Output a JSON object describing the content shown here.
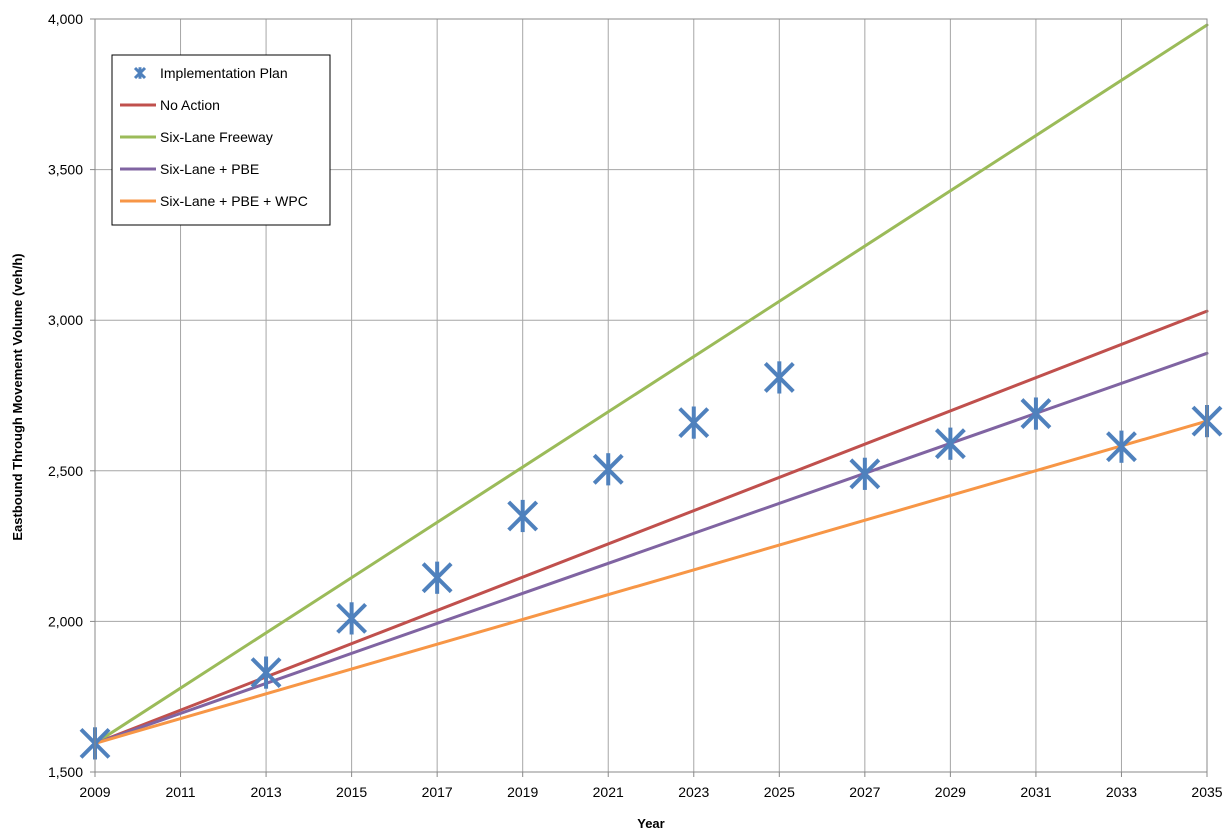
{
  "chart_data": {
    "type": "line",
    "title": "",
    "xlabel": "Year",
    "ylabel": "Eastbound Through Movement  Volume (veh/h)",
    "xlim": [
      2009,
      2035
    ],
    "ylim": [
      1500,
      4000
    ],
    "x_ticks": [
      "2009",
      "2011",
      "2013",
      "2015",
      "2017",
      "2019",
      "2021",
      "2023",
      "2025",
      "2027",
      "2029",
      "2031",
      "2033",
      "2035"
    ],
    "y_ticks": [
      "1,500",
      "2,000",
      "2,500",
      "3,000",
      "3,500",
      "4,000"
    ],
    "grid": true,
    "legend_position": "top-left",
    "series": [
      {
        "name": "Implementation Plan",
        "style": "markers",
        "marker": "asterisk",
        "color": "#4f81bd",
        "x": [
          2009,
          2013,
          2015,
          2017,
          2019,
          2021,
          2023,
          2025,
          2027,
          2029,
          2031,
          2033,
          2035
        ],
        "y": [
          1595,
          1830,
          2010,
          2145,
          2350,
          2505,
          2660,
          2810,
          2490,
          2590,
          2690,
          2580,
          2665
        ]
      },
      {
        "name": "No Action",
        "style": "line",
        "color": "#c0504d",
        "x": [
          2009,
          2035
        ],
        "y": [
          1595,
          3030
        ]
      },
      {
        "name": "Six-Lane Freeway",
        "style": "line",
        "color": "#9bbb59",
        "x": [
          2009,
          2035
        ],
        "y": [
          1595,
          3980
        ]
      },
      {
        "name": "Six-Lane + PBE",
        "style": "line",
        "color": "#8064a2",
        "x": [
          2009,
          2035
        ],
        "y": [
          1595,
          2890
        ]
      },
      {
        "name": "Six-Lane + PBE + WPC",
        "style": "line",
        "color": "#f79646",
        "x": [
          2009,
          2035
        ],
        "y": [
          1595,
          2665
        ]
      }
    ]
  }
}
